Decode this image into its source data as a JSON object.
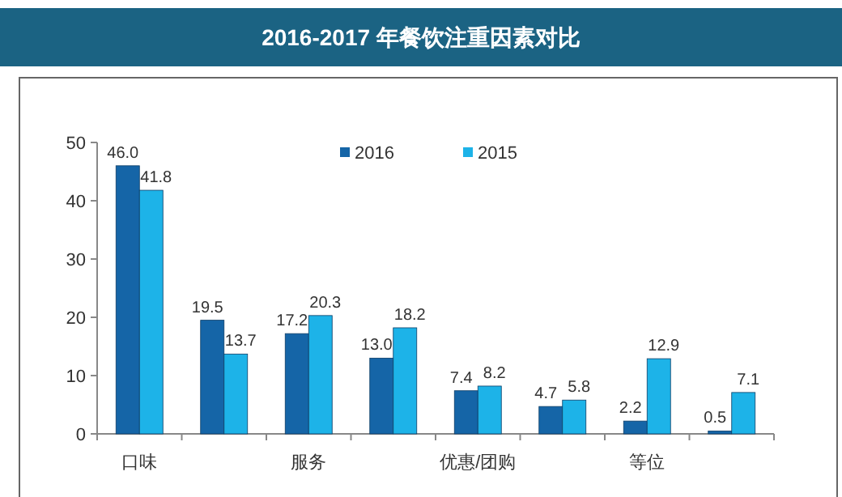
{
  "chart_data": {
    "type": "bar",
    "title": "2016-2017 年餐饮注重因素对比",
    "categories": [
      "口味",
      null,
      "服务",
      null,
      "优惠/团购",
      null,
      "等位",
      null
    ],
    "series": [
      {
        "name": "2016",
        "color": "#1565a7",
        "values": [
          46.0,
          19.5,
          17.2,
          13.0,
          7.4,
          4.7,
          2.2,
          0.5
        ],
        "value_labels": [
          "46.0",
          "19.5",
          "17.2",
          "13.0",
          "7.4",
          "4.7",
          "2.2",
          "0.5"
        ]
      },
      {
        "name": "2015",
        "color": "#1db3e8",
        "values": [
          41.8,
          13.7,
          20.3,
          18.2,
          8.2,
          5.8,
          12.9,
          7.1
        ],
        "value_labels": [
          "41.8",
          "13.7",
          "20.3",
          "18.2",
          "8.2",
          "5.8",
          "12.9",
          "7.1"
        ]
      }
    ],
    "ylim": [
      0,
      50
    ],
    "yticks": [
      0,
      10,
      20,
      30,
      40,
      50
    ],
    "legend": "top",
    "grid": false
  }
}
